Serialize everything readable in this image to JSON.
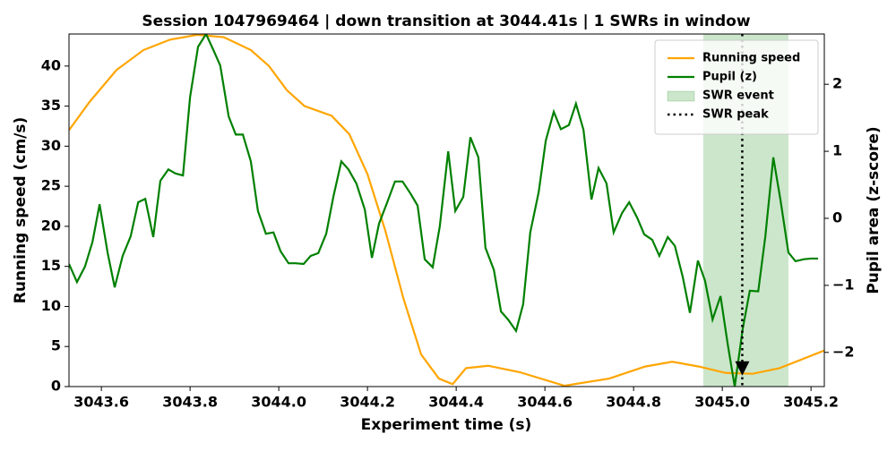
{
  "chart_data": {
    "type": "line",
    "title": "Session 1047969464 | down transition at 3044.41s | 1 SWRs in window",
    "xlabel": "Experiment time (s)",
    "ylabel": "Running speed (cm/s)",
    "y2label": "Pupil area (z-score)",
    "xlim": [
      3043.527,
      3045.23
    ],
    "ylim": [
      0,
      44
    ],
    "y2lim": [
      -2.51,
      2.75
    ],
    "xticks": [
      3043.6,
      3043.8,
      {
        "value": 3044,
        "label": "3044.0"
      },
      3044.2,
      3044.4,
      3044.6,
      3044.8,
      {
        "value": 3045,
        "label": "3045.0"
      },
      3045.2
    ],
    "yticks": [
      0,
      5,
      10,
      15,
      20,
      25,
      30,
      35,
      40
    ],
    "y2ticks": [
      {
        "value": -2,
        "label": "−2"
      },
      {
        "value": -1,
        "label": "−1"
      },
      0,
      1,
      2
    ],
    "legend": "upper right",
    "series": [
      {
        "name": "Running speed",
        "color": "#ffa500",
        "axis": "y",
        "x": [
          3043.527,
          3043.573,
          3043.634,
          3043.695,
          3043.755,
          3043.816,
          3043.876,
          3043.937,
          3043.978,
          3044.018,
          3044.058,
          3044.119,
          3044.159,
          3044.2,
          3044.24,
          3044.281,
          3044.321,
          3044.361,
          3044.392,
          3044.422,
          3044.472,
          3044.543,
          3044.644,
          3044.745,
          3044.826,
          3044.887,
          3044.947,
          3045.008,
          3045.068,
          3045.129,
          3045.23
        ],
        "values": [
          32,
          35.5,
          39.5,
          42,
          43.3,
          43.9,
          43.6,
          42,
          40,
          37,
          35,
          33.8,
          31.5,
          26.5,
          19.5,
          11,
          4,
          1.0,
          0.3,
          2.3,
          2.6,
          1.8,
          0.1,
          1.0,
          2.5,
          3.1,
          2.5,
          1.7,
          1.6,
          2.3,
          4.5
        ]
      },
      {
        "name": "Pupil (z)",
        "color": "#008000",
        "axis": "y2",
        "x": [
          3043.527,
          3043.545,
          3043.563,
          3043.58,
          3043.596,
          3043.614,
          3043.63,
          3043.648,
          3043.666,
          3043.683,
          3043.699,
          3043.717,
          3043.733,
          3043.751,
          3043.767,
          3043.784,
          3043.8,
          3043.818,
          3043.836,
          3043.852,
          3043.868,
          3043.887,
          3043.903,
          3043.919,
          3043.937,
          3043.953,
          3043.971,
          3043.988,
          3044.004,
          3044.022,
          3044.038,
          3044.056,
          3044.072,
          3044.089,
          3044.107,
          3044.123,
          3044.141,
          3044.157,
          3044.175,
          3044.194,
          3044.21,
          3044.226,
          3044.244,
          3044.262,
          3044.279,
          3044.297,
          3044.313,
          3044.329,
          3044.347,
          3044.363,
          3044.382,
          3044.398,
          3044.416,
          3044.432,
          3044.45,
          3044.466,
          3044.485,
          3044.501,
          3044.517,
          3044.535,
          3044.551,
          3044.567,
          3044.586,
          3044.602,
          3044.62,
          3044.636,
          3044.654,
          3044.67,
          3044.687,
          3044.705,
          3044.721,
          3044.739,
          3044.755,
          3044.774,
          3044.79,
          3044.808,
          3044.824,
          3044.842,
          3044.858,
          3044.877,
          3044.893,
          3044.911,
          3044.927,
          3044.945,
          3044.961,
          3044.978,
          3044.996,
          3045.012,
          3045.028,
          3045.046,
          3045.062,
          3045.081,
          3045.097,
          3045.115,
          3045.131,
          3045.149,
          3045.165,
          3045.184,
          3045.2,
          3045.216
        ],
        "values": [
          -0.68,
          -0.95,
          -0.72,
          -0.35,
          0.21,
          -0.51,
          -1.03,
          -0.56,
          -0.27,
          0.24,
          0.29,
          -0.28,
          0.56,
          0.73,
          0.67,
          0.64,
          1.81,
          2.56,
          2.75,
          2.52,
          2.28,
          1.52,
          1.25,
          1.25,
          0.85,
          0.11,
          -0.23,
          -0.21,
          -0.49,
          -0.67,
          -0.67,
          -0.68,
          -0.56,
          -0.52,
          -0.23,
          0.32,
          0.85,
          0.73,
          0.52,
          0.13,
          -0.59,
          -0.08,
          0.23,
          0.55,
          0.55,
          0.37,
          0.19,
          -0.61,
          -0.73,
          -0.12,
          1.0,
          0.11,
          0.32,
          1.21,
          0.91,
          -0.44,
          -0.77,
          -1.39,
          -1.51,
          -1.68,
          -1.28,
          -0.21,
          0.39,
          1.16,
          1.59,
          1.33,
          1.39,
          1.71,
          1.32,
          0.28,
          0.75,
          0.52,
          -0.21,
          0.08,
          0.24,
          0.01,
          -0.24,
          -0.32,
          -0.56,
          -0.28,
          -0.41,
          -0.88,
          -1.41,
          -0.63,
          -0.93,
          -1.51,
          -1.16,
          -1.87,
          -2.51,
          -1.65,
          -1.08,
          -1.09,
          -0.27,
          0.91,
          0.28,
          -0.51,
          -0.64,
          -0.61,
          -0.6,
          -0.6
        ]
      }
    ],
    "swr_event": {
      "name": "SWR event",
      "color": "#008000",
      "x0": 3044.957,
      "x1": 3045.149
    },
    "swr_peak": {
      "name": "SWR peak",
      "color": "#000000",
      "x": 3045.045,
      "marker_y": -2.24
    }
  }
}
